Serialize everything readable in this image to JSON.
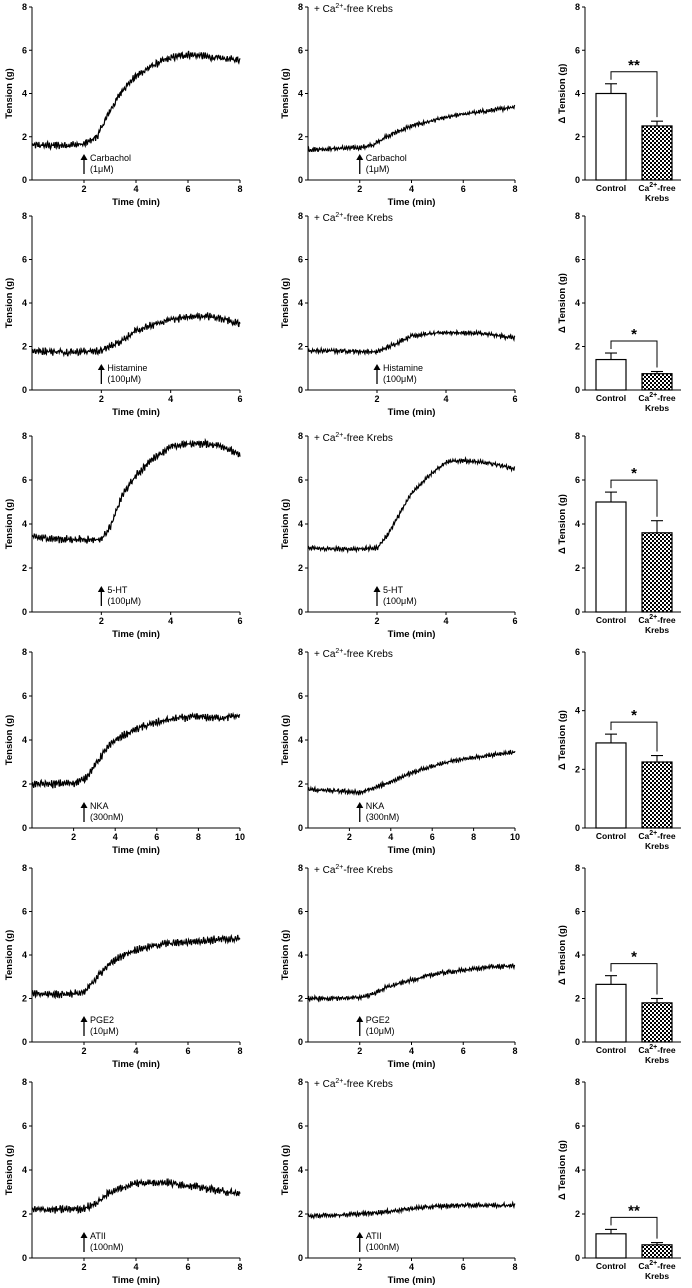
{
  "figure": {
    "bar_category_control": "Control",
    "bar_category_treated_line1": "Ca",
    "bar_category_treated_sup": "2+",
    "bar_category_treated_line1_suffix": "-free",
    "bar_category_treated_line2": "Krebs",
    "condition_note_prefix": "+ Ca",
    "condition_note_sup": "2+",
    "condition_note_suffix": "-free Krebs"
  },
  "chart_data": [
    {
      "type": "line",
      "row": 1,
      "column": 1,
      "title": "",
      "xlabel": "Time (min)",
      "ylabel": "Tension (g)",
      "xlim": [
        0,
        8
      ],
      "ylim": [
        0,
        8
      ],
      "xticks": [
        2,
        4,
        6,
        8
      ],
      "yticks": [
        0,
        2,
        4,
        6,
        8
      ],
      "agonist": "Carbachol",
      "concentration": "(1μM)",
      "addition_time": 2,
      "condition_note": "",
      "x": [
        0,
        1,
        2,
        2.5,
        3,
        3.5,
        4,
        4.5,
        5,
        5.5,
        6,
        6.5,
        7,
        7.5,
        8
      ],
      "y": [
        1.6,
        1.6,
        1.65,
        2.0,
        3.2,
        4.2,
        4.8,
        5.2,
        5.5,
        5.7,
        5.8,
        5.75,
        5.65,
        5.6,
        5.55
      ]
    },
    {
      "type": "line",
      "row": 1,
      "column": 2,
      "title": "",
      "xlabel": "Time (min)",
      "ylabel": "Tension (g)",
      "xlim": [
        0,
        8
      ],
      "ylim": [
        0,
        8
      ],
      "xticks": [
        2,
        4,
        6,
        8
      ],
      "yticks": [
        0,
        2,
        4,
        6,
        8
      ],
      "agonist": "Carbachol",
      "concentration": "(1μM)",
      "addition_time": 2,
      "condition_note": "+ Ca2+-free Krebs",
      "x": [
        0,
        1,
        2,
        2.5,
        3,
        4,
        5,
        6,
        7,
        8
      ],
      "y": [
        1.4,
        1.45,
        1.5,
        1.6,
        2.0,
        2.5,
        2.8,
        3.05,
        3.2,
        3.4
      ]
    },
    {
      "type": "bar",
      "row": 1,
      "column": 3,
      "title": "",
      "xlabel": "",
      "ylabel": "Δ Tension (g)",
      "ylim": [
        0,
        8
      ],
      "yticks": [
        0,
        2,
        4,
        6,
        8
      ],
      "categories": [
        "Control",
        "Ca2+-free Krebs"
      ],
      "values": [
        4.0,
        2.5
      ],
      "errors": [
        0.45,
        0.22
      ],
      "significance": "**"
    },
    {
      "type": "line",
      "row": 2,
      "column": 1,
      "title": "",
      "xlabel": "Time (min)",
      "ylabel": "Tension (g)",
      "xlim": [
        0,
        6
      ],
      "ylim": [
        0,
        8
      ],
      "xticks": [
        2,
        4,
        6
      ],
      "yticks": [
        0,
        2,
        4,
        6,
        8
      ],
      "agonist": "Histamine",
      "concentration": "(100μM)",
      "addition_time": 2,
      "condition_note": "",
      "x": [
        0,
        1,
        2,
        2.5,
        3,
        3.5,
        4,
        4.5,
        5,
        5.5,
        6
      ],
      "y": [
        1.8,
        1.75,
        1.8,
        2.2,
        2.7,
        3.0,
        3.25,
        3.35,
        3.4,
        3.3,
        3.0
      ]
    },
    {
      "type": "line",
      "row": 2,
      "column": 2,
      "title": "",
      "xlabel": "Time (min)",
      "ylabel": "Tension (g)",
      "xlim": [
        0,
        6
      ],
      "ylim": [
        0,
        8
      ],
      "xticks": [
        2,
        4,
        6
      ],
      "yticks": [
        0,
        2,
        4,
        6,
        8
      ],
      "agonist": "Histamine",
      "concentration": "(100μM)",
      "addition_time": 2,
      "condition_note": "+ Ca2+-free Krebs",
      "x": [
        0,
        1,
        2,
        2.5,
        3,
        4,
        5,
        6
      ],
      "y": [
        1.8,
        1.8,
        1.75,
        2.1,
        2.5,
        2.65,
        2.6,
        2.4
      ]
    },
    {
      "type": "bar",
      "row": 2,
      "column": 3,
      "title": "",
      "xlabel": "",
      "ylabel": "Δ Tension (g)",
      "ylim": [
        0,
        8
      ],
      "yticks": [
        0,
        2,
        4,
        6,
        8
      ],
      "categories": [
        "Control",
        "Ca2+-free Krebs"
      ],
      "values": [
        1.4,
        0.75
      ],
      "errors": [
        0.3,
        0.1
      ],
      "significance": "*"
    },
    {
      "type": "line",
      "row": 3,
      "column": 1,
      "title": "",
      "xlabel": "Time (min)",
      "ylabel": "Tension (g)",
      "xlim": [
        0,
        6
      ],
      "ylim": [
        0,
        8
      ],
      "xticks": [
        2,
        4,
        6
      ],
      "yticks": [
        0,
        2,
        4,
        6,
        8
      ],
      "agonist": "5-HT",
      "concentration": "(100μM)",
      "addition_time": 2,
      "condition_note": "",
      "x": [
        0,
        1,
        2,
        2.3,
        2.6,
        3,
        3.5,
        4,
        4.5,
        5,
        5.5,
        6
      ],
      "y": [
        3.4,
        3.3,
        3.3,
        4.0,
        5.3,
        6.2,
        7.0,
        7.5,
        7.65,
        7.65,
        7.55,
        7.1
      ]
    },
    {
      "type": "line",
      "row": 3,
      "column": 2,
      "title": "",
      "xlabel": "Time (min)",
      "ylabel": "Tension (g)",
      "xlim": [
        0,
        6
      ],
      "ylim": [
        0,
        8
      ],
      "xticks": [
        2,
        4,
        6
      ],
      "yticks": [
        0,
        2,
        4,
        6,
        8
      ],
      "agonist": "5-HT",
      "concentration": "(100μM)",
      "addition_time": 2,
      "condition_note": "+ Ca2+-free Krebs",
      "x": [
        0,
        1,
        2,
        2.3,
        2.6,
        3,
        3.5,
        4,
        4.5,
        5,
        5.5,
        6
      ],
      "y": [
        2.9,
        2.85,
        2.9,
        3.5,
        4.3,
        5.4,
        6.2,
        6.8,
        6.9,
        6.8,
        6.7,
        6.5
      ]
    },
    {
      "type": "bar",
      "row": 3,
      "column": 3,
      "title": "",
      "xlabel": "",
      "ylabel": "Δ Tension (g)",
      "ylim": [
        0,
        8
      ],
      "yticks": [
        0,
        2,
        4,
        6,
        8
      ],
      "categories": [
        "Control",
        "Ca2+-free Krebs"
      ],
      "values": [
        5.0,
        3.6
      ],
      "errors": [
        0.45,
        0.55
      ],
      "significance": "*"
    },
    {
      "type": "line",
      "row": 4,
      "column": 1,
      "title": "",
      "xlabel": "Time (min)",
      "ylabel": "Tension (g)",
      "xlim": [
        0,
        10
      ],
      "ylim": [
        0,
        8
      ],
      "xticks": [
        2,
        4,
        6,
        8,
        10
      ],
      "yticks": [
        0,
        2,
        4,
        6,
        8
      ],
      "agonist": "NKA",
      "concentration": "(300nM)",
      "addition_time": 2.5,
      "condition_note": "",
      "x": [
        0,
        1,
        2,
        2.5,
        3,
        3.5,
        4,
        5,
        6,
        7,
        8,
        9,
        10
      ],
      "y": [
        2.0,
        2.0,
        2.05,
        2.2,
        2.8,
        3.5,
        4.0,
        4.5,
        4.8,
        5.0,
        5.05,
        5.0,
        5.1
      ]
    },
    {
      "type": "line",
      "row": 4,
      "column": 2,
      "title": "",
      "xlabel": "Time (min)",
      "ylabel": "Tension (g)",
      "xlim": [
        0,
        10
      ],
      "ylim": [
        0,
        8
      ],
      "xticks": [
        2,
        4,
        6,
        8,
        10
      ],
      "yticks": [
        0,
        2,
        4,
        6,
        8
      ],
      "agonist": "NKA",
      "concentration": "(300nM)",
      "addition_time": 2.5,
      "condition_note": "+ Ca2+-free Krebs",
      "x": [
        0,
        1,
        2,
        2.5,
        3,
        4,
        5,
        6,
        7,
        8,
        9,
        10
      ],
      "y": [
        1.75,
        1.7,
        1.65,
        1.6,
        1.75,
        2.1,
        2.5,
        2.8,
        3.05,
        3.2,
        3.35,
        3.45
      ]
    },
    {
      "type": "bar",
      "row": 4,
      "column": 3,
      "title": "",
      "xlabel": "",
      "ylabel": "Δ Tension (g)",
      "ylim": [
        0,
        6
      ],
      "yticks": [
        0,
        2,
        4,
        6
      ],
      "categories": [
        "Control",
        "Ca2+-free Krebs"
      ],
      "values": [
        2.9,
        2.25
      ],
      "errors": [
        0.3,
        0.22
      ],
      "significance": "*"
    },
    {
      "type": "line",
      "row": 5,
      "column": 1,
      "title": "",
      "xlabel": "Time (min)",
      "ylabel": "Tension (g)",
      "xlim": [
        0,
        8
      ],
      "ylim": [
        0,
        8
      ],
      "xticks": [
        2,
        4,
        6,
        8
      ],
      "yticks": [
        0,
        2,
        4,
        6,
        8
      ],
      "agonist": "PGE2",
      "concentration": "(10μM)",
      "addition_time": 2,
      "condition_note": "",
      "x": [
        0,
        1,
        2,
        2.5,
        3,
        3.5,
        4,
        5,
        6,
        7,
        8
      ],
      "y": [
        2.2,
        2.2,
        2.25,
        3.0,
        3.6,
        4.0,
        4.25,
        4.5,
        4.6,
        4.7,
        4.75
      ]
    },
    {
      "type": "line",
      "row": 5,
      "column": 2,
      "title": "",
      "xlabel": "Time (min)",
      "ylabel": "Tension (g)",
      "xlim": [
        0,
        8
      ],
      "ylim": [
        0,
        8
      ],
      "xticks": [
        2,
        4,
        6,
        8
      ],
      "yticks": [
        0,
        2,
        4,
        6,
        8
      ],
      "agonist": "PGE2",
      "concentration": "(10μM)",
      "addition_time": 2,
      "condition_note": "+ Ca2+-free Krebs",
      "x": [
        0,
        1,
        2,
        2.5,
        3,
        4,
        5,
        6,
        7,
        8
      ],
      "y": [
        2.0,
        2.0,
        2.05,
        2.2,
        2.5,
        2.85,
        3.15,
        3.3,
        3.45,
        3.5
      ]
    },
    {
      "type": "bar",
      "row": 5,
      "column": 3,
      "title": "",
      "xlabel": "",
      "ylabel": "Δ Tension (g)",
      "ylim": [
        0,
        8
      ],
      "yticks": [
        0,
        2,
        4,
        6,
        8
      ],
      "categories": [
        "Control",
        "Ca2+-free Krebs"
      ],
      "values": [
        2.65,
        1.8
      ],
      "errors": [
        0.4,
        0.2
      ],
      "significance": "*"
    },
    {
      "type": "line",
      "row": 6,
      "column": 1,
      "title": "",
      "xlabel": "Time (min)",
      "ylabel": "Tension (g)",
      "xlim": [
        0,
        8
      ],
      "ylim": [
        0,
        8
      ],
      "xticks": [
        2,
        4,
        6,
        8
      ],
      "yticks": [
        0,
        2,
        4,
        6,
        8
      ],
      "agonist": "ATII",
      "concentration": "(100nM)",
      "addition_time": 2,
      "condition_note": "",
      "x": [
        0,
        1,
        2,
        2.5,
        3,
        4,
        5,
        6,
        7,
        8
      ],
      "y": [
        2.2,
        2.2,
        2.25,
        2.5,
        3.0,
        3.4,
        3.45,
        3.3,
        3.1,
        2.9
      ]
    },
    {
      "type": "line",
      "row": 6,
      "column": 2,
      "title": "",
      "xlabel": "Time (min)",
      "ylabel": "Tension (g)",
      "xlim": [
        0,
        8
      ],
      "ylim": [
        0,
        8
      ],
      "xticks": [
        2,
        4,
        6,
        8
      ],
      "yticks": [
        0,
        2,
        4,
        6,
        8
      ],
      "agonist": "ATII",
      "concentration": "(100nM)",
      "addition_time": 2,
      "condition_note": "+ Ca2+-free Krebs",
      "x": [
        0,
        1,
        2,
        3,
        4,
        5,
        6,
        7,
        8
      ],
      "y": [
        1.9,
        1.95,
        2.0,
        2.1,
        2.25,
        2.35,
        2.4,
        2.4,
        2.4
      ]
    },
    {
      "type": "bar",
      "row": 6,
      "column": 3,
      "title": "",
      "xlabel": "",
      "ylabel": "Δ Tension (g)",
      "ylim": [
        0,
        8
      ],
      "yticks": [
        0,
        2,
        4,
        6,
        8
      ],
      "categories": [
        "Control",
        "Ca2+-free Krebs"
      ],
      "values": [
        1.1,
        0.6
      ],
      "errors": [
        0.2,
        0.1
      ],
      "significance": "**"
    }
  ]
}
